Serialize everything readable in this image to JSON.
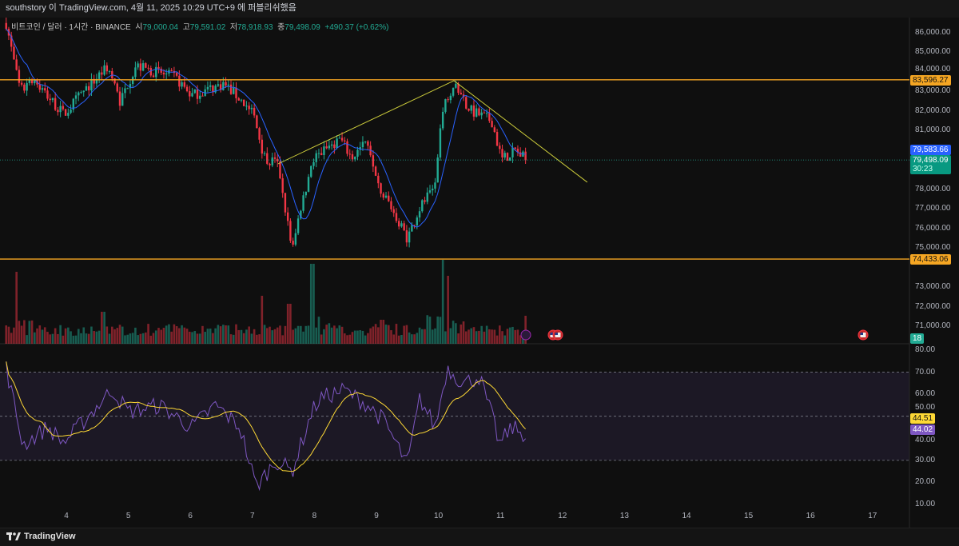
{
  "header": {
    "publish_line": "southstory 이 TradingView.com, 4월 11, 2025 10:29 UTC+9 에 퍼블리쉬했음"
  },
  "legend": {
    "symbol": "비트코인 / 달러 · 1시간 · BINANCE",
    "open_label": "시",
    "open": "79,000.04",
    "high_label": "고",
    "high": "79,591.02",
    "low_label": "저",
    "low": "78,918.93",
    "close_label": "종",
    "close": "79,498.09",
    "change": "+490.37 (+0.62%)"
  },
  "colors": {
    "up": "#22ab94",
    "down": "#f23645",
    "ma": "#2962ff",
    "level": "#f5a623",
    "trend": "#c9c93a",
    "rsi": "#7e57c2",
    "rsi_ma": "#fdd835",
    "bg": "#0f0f0f"
  },
  "badges": {
    "resistance": "83,596.27",
    "ma_value": "79,583.66",
    "last_price": "79,498.09",
    "countdown": "30:23",
    "support": "74,433.06",
    "volume": "18",
    "rsi_ma": "44.51",
    "rsi": "44.02"
  },
  "chart_data": {
    "type": "candlestick",
    "interval": "1h",
    "x_axis": {
      "ticks": [
        "4",
        "5",
        "6",
        "7",
        "8",
        "9",
        "10",
        "11",
        "12",
        "13",
        "14",
        "15",
        "16",
        "17"
      ],
      "range_days": [
        3.03,
        17.7
      ]
    },
    "price_axis": {
      "ticks": [
        "86,000.00",
        "85,000.00",
        "84,000.00",
        "83,000.00",
        "82,000.00",
        "81,000.00",
        "78,000.00",
        "77,000.00",
        "76,000.00",
        "75,000.00",
        "73,000.00",
        "72,000.00",
        "71,000.00"
      ],
      "range": [
        70400,
        86800
      ]
    },
    "price_path": [
      [
        3.03,
        86500
      ],
      [
        3.25,
        83000
      ],
      [
        3.45,
        83700
      ],
      [
        3.96,
        81800
      ],
      [
        4.22,
        82800
      ],
      [
        4.67,
        84300
      ],
      [
        4.86,
        82500
      ],
      [
        5.12,
        84300
      ],
      [
        5.76,
        83700
      ],
      [
        6.02,
        82800
      ],
      [
        6.54,
        83400
      ],
      [
        7.0,
        82000
      ],
      [
        7.19,
        79700
      ],
      [
        7.42,
        79200
      ],
      [
        7.64,
        74800
      ],
      [
        7.96,
        79500
      ],
      [
        8.41,
        80600
      ],
      [
        8.6,
        79600
      ],
      [
        8.86,
        80500
      ],
      [
        9.05,
        78200
      ],
      [
        9.5,
        75500
      ],
      [
        9.69,
        77000
      ],
      [
        9.95,
        78200
      ],
      [
        10.08,
        82500
      ],
      [
        10.25,
        83300
      ],
      [
        10.53,
        82000
      ],
      [
        10.86,
        81500
      ],
      [
        11.02,
        79500
      ],
      [
        11.24,
        80000
      ],
      [
        11.41,
        79500
      ]
    ],
    "levels": [
      83596.27,
      74433.06
    ],
    "trendlines": [
      [
        [
          7.415,
          79300
        ],
        [
          10.25,
          83550
        ]
      ],
      [
        [
          10.25,
          83550
        ],
        [
          12.4,
          78360
        ]
      ]
    ],
    "volume_spikes": [
      [
        3.2,
        0.9
      ],
      [
        4.6,
        0.4
      ],
      [
        7.15,
        0.6
      ],
      [
        7.6,
        0.5
      ],
      [
        7.96,
        1.0
      ],
      [
        9.1,
        0.3
      ],
      [
        10.08,
        1.05
      ],
      [
        10.15,
        0.85
      ],
      [
        11.4,
        0.35
      ]
    ],
    "rsi_axis": {
      "ticks": [
        "80.00",
        "70.00",
        "60.00",
        "50.00",
        "40.00",
        "30.00",
        "20.00",
        "10.00"
      ],
      "bands": [
        70,
        30
      ],
      "mid": 50
    },
    "rsi_path": [
      [
        3.03,
        72
      ],
      [
        3.3,
        37
      ],
      [
        3.7,
        45
      ],
      [
        3.96,
        38
      ],
      [
        4.74,
        62
      ],
      [
        5.0,
        52
      ],
      [
        5.5,
        55
      ],
      [
        6.02,
        45
      ],
      [
        6.41,
        55
      ],
      [
        6.8,
        45
      ],
      [
        7.06,
        18
      ],
      [
        7.38,
        30
      ],
      [
        7.64,
        25
      ],
      [
        7.96,
        52
      ],
      [
        8.09,
        58
      ],
      [
        8.48,
        62
      ],
      [
        8.86,
        55
      ],
      [
        9.12,
        48
      ],
      [
        9.5,
        28
      ],
      [
        9.7,
        58
      ],
      [
        9.95,
        45
      ],
      [
        10.14,
        72
      ],
      [
        10.4,
        65
      ],
      [
        10.66,
        68
      ],
      [
        10.92,
        45
      ],
      [
        10.98,
        37
      ],
      [
        11.18,
        45
      ],
      [
        11.38,
        42
      ]
    ]
  },
  "footer": {
    "brand": "TradingView"
  }
}
